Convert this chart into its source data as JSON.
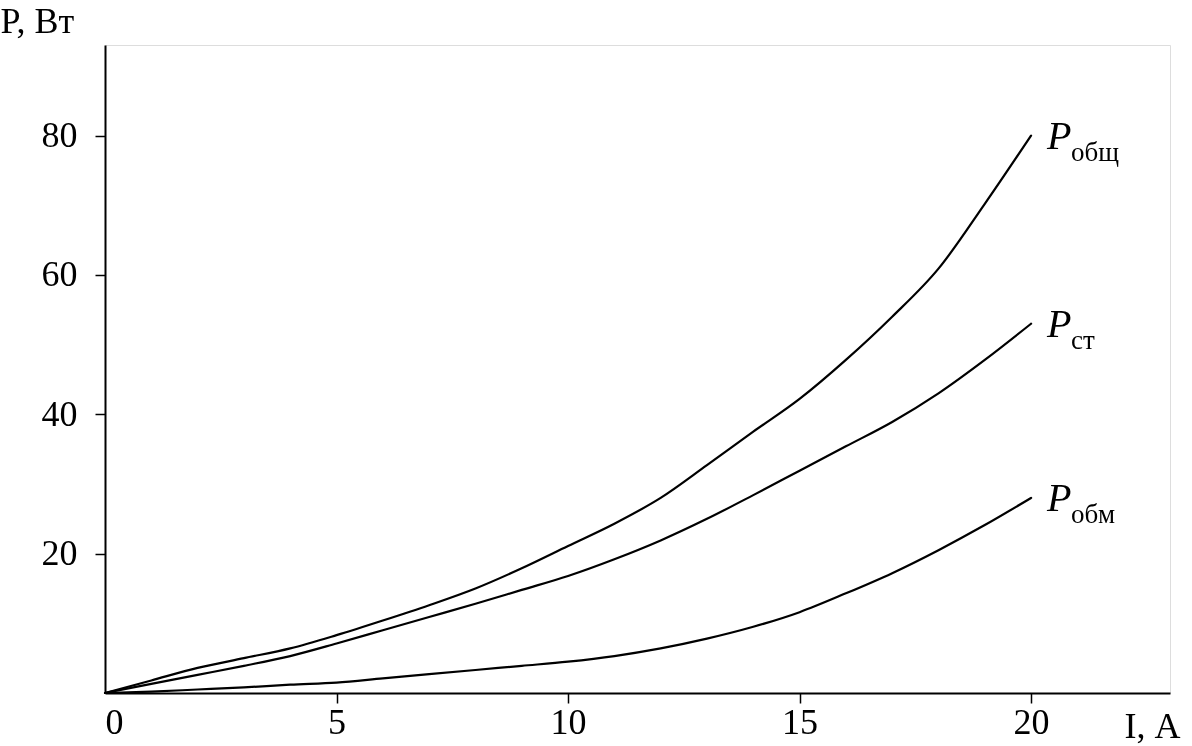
{
  "chart_data": {
    "type": "line",
    "xlabel": "I, А",
    "ylabel": "P, Вт",
    "x": [
      0,
      1,
      2,
      3,
      4,
      5,
      6,
      7,
      8,
      9,
      10,
      11,
      12,
      13,
      14,
      15,
      16,
      17,
      18,
      19,
      20
    ],
    "xlim": [
      0,
      23
    ],
    "ylim": [
      0,
      93
    ],
    "xticks": [
      0,
      5,
      10,
      15,
      20
    ],
    "yticks": [
      20,
      40,
      60,
      80
    ],
    "series": [
      {
        "name": "P$_{общ}$",
        "color": "#000000",
        "values": [
          0,
          1.8,
          3.6,
          5.0,
          6.4,
          8.3,
          10.4,
          12.6,
          15.0,
          17.9,
          21.1,
          24.3,
          28.0,
          32.7,
          37.5,
          42.2,
          47.8,
          54.0,
          60.9,
          70.2,
          80
        ]
      },
      {
        "name": "P$_{ст}$",
        "color": "#000000",
        "values": [
          0,
          1.3,
          2.6,
          3.9,
          5.3,
          7.1,
          9.0,
          10.9,
          12.8,
          14.8,
          16.8,
          19.2,
          21.9,
          25.0,
          28.4,
          31.9,
          35.4,
          38.9,
          43.0,
          47.8,
          53.0
        ]
      },
      {
        "name": "P$_{обм}$",
        "color": "#000000",
        "values": [
          0,
          0.2,
          0.5,
          0.8,
          1.2,
          1.5,
          2.1,
          2.7,
          3.3,
          3.9,
          4.5,
          5.3,
          6.4,
          7.8,
          9.5,
          11.6,
          14.3,
          17.2,
          20.5,
          24.1,
          28
        ]
      }
    ]
  }
}
